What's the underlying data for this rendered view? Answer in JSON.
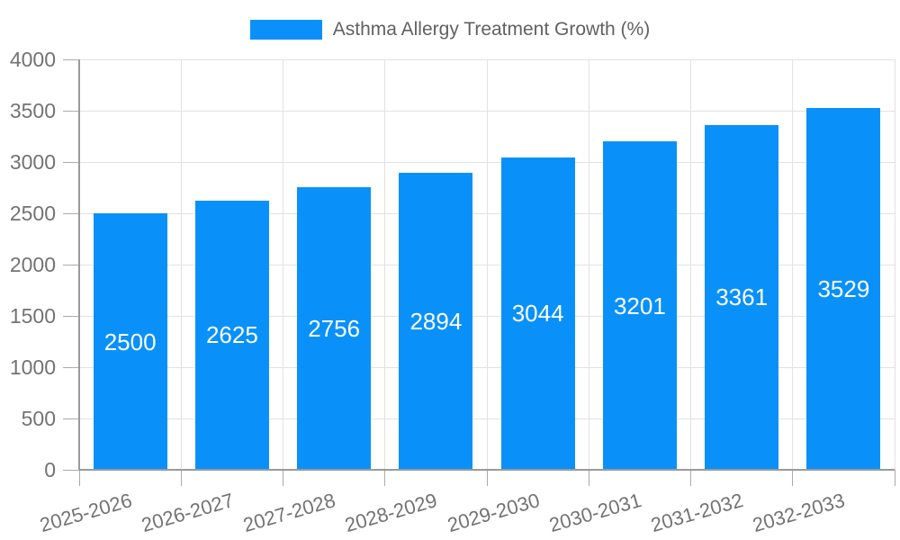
{
  "legend": {
    "label": "Asthma Allergy Treatment Growth (%)"
  },
  "chart_data": {
    "type": "bar",
    "title": "Asthma Allergy Treatment Growth (%)",
    "series_name": "Asthma Allergy Treatment Growth (%)",
    "categories": [
      "2025-2026",
      "2026-2027",
      "2027-2028",
      "2028-2029",
      "2029-2030",
      "2030-2031",
      "2031-2032",
      "2032-2033"
    ],
    "values": [
      2500,
      2625,
      2756,
      2894,
      3044,
      3201,
      3361,
      3529
    ],
    "value_labels_position": "inside-center",
    "xlabel": "",
    "ylabel": "",
    "ylim": [
      0,
      4000
    ],
    "ytick_step": 500,
    "ytick_labels": [
      "0",
      "500",
      "1000",
      "1500",
      "2000",
      "2500",
      "3000",
      "3500",
      "4000"
    ],
    "grid": true,
    "legend_position": "top-center",
    "colors": {
      "bar": "#0991F9",
      "grid": "#e2e2e2",
      "axis": "#9a9a9a",
      "tick": "#ababab",
      "tick_label": "#737373",
      "legend_text": "#616161",
      "value_label": "#ffffff",
      "background": "#ffffff"
    }
  }
}
